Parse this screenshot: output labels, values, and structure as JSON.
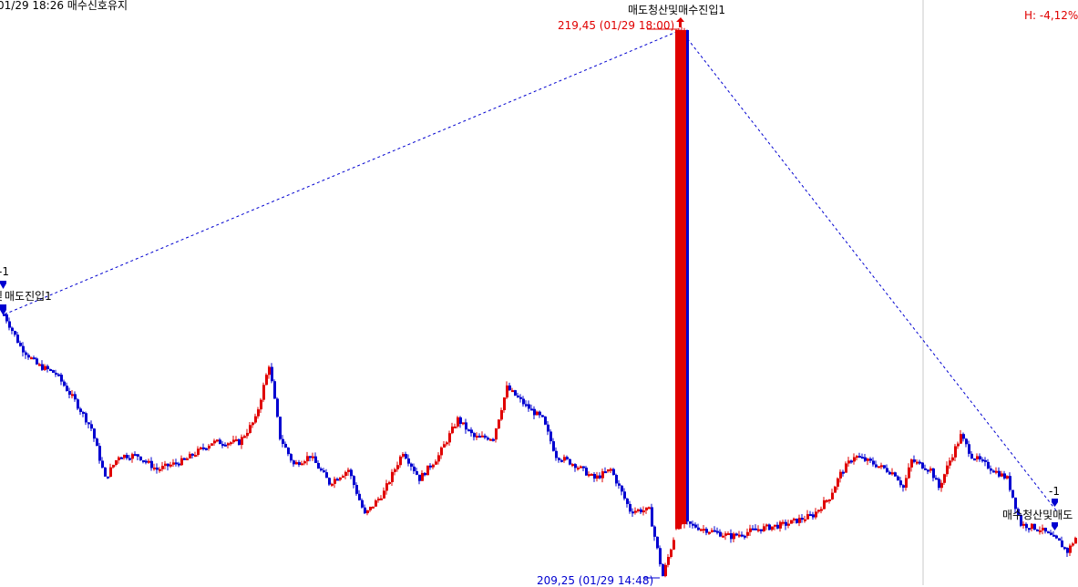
{
  "header": {
    "status_text": "01/29 18:26 매수신호유지",
    "change_text": "H: -4,12%"
  },
  "colors": {
    "up": "#e00000",
    "down": "#0000d0",
    "signal_line": "#0000d0",
    "high_label": "#e00000",
    "low_label": "#0000d0",
    "divider": "#c8c8c8"
  },
  "chart_data": {
    "type": "candlestick",
    "x_unit": "bar index",
    "ylim": [
      209.2,
      219.6
    ],
    "grid": false,
    "high_marker": {
      "price": 219.45,
      "label": "219,45 (01/29 18:00)"
    },
    "low_marker": {
      "price": 209.25,
      "label": "209,25 (01/29 14:48)"
    },
    "price_path": [
      [
        1,
        214.14
      ],
      [
        7,
        213.54
      ],
      [
        13,
        213.2
      ],
      [
        20,
        213.03
      ],
      [
        27,
        212.52
      ],
      [
        33,
        212.01
      ],
      [
        38,
        211.07
      ],
      [
        43,
        211.5
      ],
      [
        50,
        211.5
      ],
      [
        57,
        211.24
      ],
      [
        67,
        211.41
      ],
      [
        77,
        211.75
      ],
      [
        87,
        211.75
      ],
      [
        93,
        212.18
      ],
      [
        98,
        213.2
      ],
      [
        102,
        211.84
      ],
      [
        107,
        211.33
      ],
      [
        113,
        211.5
      ],
      [
        120,
        210.99
      ],
      [
        127,
        211.24
      ],
      [
        133,
        210.39
      ],
      [
        140,
        210.82
      ],
      [
        147,
        211.58
      ],
      [
        153,
        211.07
      ],
      [
        160,
        211.5
      ],
      [
        167,
        212.18
      ],
      [
        173,
        211.84
      ],
      [
        180,
        211.84
      ],
      [
        185,
        212.77
      ],
      [
        192,
        212.43
      ],
      [
        198,
        212.18
      ],
      [
        203,
        211.5
      ],
      [
        210,
        211.33
      ],
      [
        217,
        211.07
      ],
      [
        223,
        211.24
      ],
      [
        230,
        210.48
      ],
      [
        237,
        210.48
      ],
      [
        242,
        209.25
      ],
      [
        247,
        210.13
      ],
      [
        249,
        219.45
      ],
      [
        251,
        210.22
      ],
      [
        257,
        210.13
      ],
      [
        267,
        209.99
      ],
      [
        277,
        210.13
      ],
      [
        287,
        210.22
      ],
      [
        297,
        210.39
      ],
      [
        303,
        210.73
      ],
      [
        307,
        211.16
      ],
      [
        312,
        211.5
      ],
      [
        320,
        211.33
      ],
      [
        327,
        211.16
      ],
      [
        330,
        210.9
      ],
      [
        333,
        211.41
      ],
      [
        340,
        211.24
      ],
      [
        343,
        210.9
      ],
      [
        347,
        211.41
      ],
      [
        351,
        211.87
      ],
      [
        355,
        211.5
      ],
      [
        360,
        211.33
      ],
      [
        368,
        211.07
      ],
      [
        373,
        210.22
      ],
      [
        380,
        210.13
      ],
      [
        387,
        209.88
      ],
      [
        390,
        209.71
      ],
      [
        394,
        210.05
      ]
    ],
    "signals": [
      {
        "bar": 1,
        "price": 214.14,
        "type": "sell",
        "label": "매도진입1",
        "qty": "-1",
        "label_prefix": "및"
      },
      {
        "bar": 249,
        "price": 219.45,
        "type": "buy",
        "label": "매도청산및매수진입1"
      },
      {
        "bar": 386,
        "price": 210.05,
        "type": "sell",
        "label": "매수청산및매도",
        "qty": "-1"
      }
    ]
  }
}
